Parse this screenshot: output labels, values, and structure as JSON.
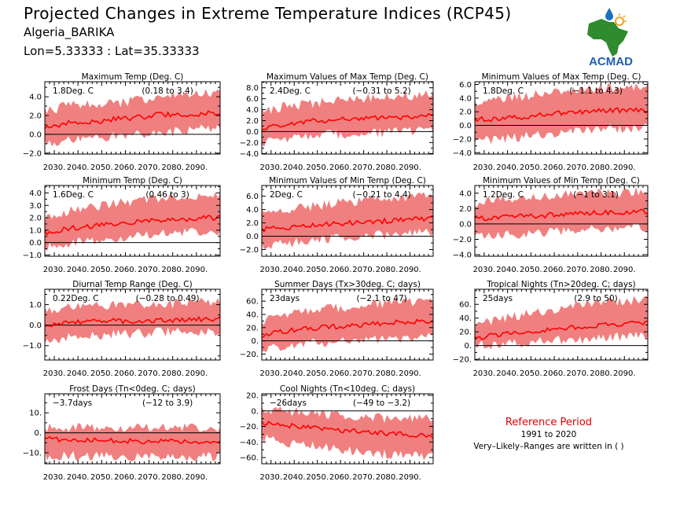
{
  "header": {
    "title": "Projected Changes in Extreme Temperature Indices (RCP45)",
    "station": "Algeria_BARIKA",
    "coords": "Lon=5.33333 : Lat=35.33333"
  },
  "logo": {
    "text": "ACMAD",
    "icon": "africa-map-logo",
    "colors": {
      "map": "#2e8b2e",
      "text": "#2060b0",
      "drop": "#1e70c0",
      "sun": "#f0a020"
    }
  },
  "reference": {
    "title": "Reference Period",
    "years": "1991 to 2020",
    "note": "Very–Likely–Ranges are written in ( )"
  },
  "style": {
    "band_color": "#f08080",
    "line_color": "#ff0000",
    "zero_line_color": "#000000"
  },
  "chart_data": [
    {
      "type": "area",
      "title": "Maximum Temp (Deg. C)",
      "annotation": "1.8Deg. C",
      "range_text": "(0.18 to 3.4)",
      "xlim": [
        2026,
        2100
      ],
      "ylim": [
        -2.1,
        5.6
      ],
      "yticks": [
        -2.0,
        0.0,
        2.0,
        4.0
      ],
      "ytick_labels": [
        "−2.0",
        "0.0",
        "2.0",
        "4.0"
      ],
      "xtick_labels": [
        "2030.",
        "2040.",
        "2050.",
        "2060.",
        "2070.",
        "2080.",
        "2090."
      ],
      "series": [
        {
          "name": "median",
          "x": [
            2026,
            2035,
            2045,
            2055,
            2065,
            2075,
            2085,
            2095,
            2100
          ],
          "values": [
            0.6,
            1.2,
            1.3,
            1.6,
            1.8,
            2.1,
            2.0,
            2.3,
            2.3
          ]
        }
      ],
      "band": {
        "lower": [
          -1.0,
          -0.6,
          -0.5,
          -0.2,
          -0.1,
          0.2,
          0.3,
          0.6,
          0.6
        ],
        "upper": [
          2.4,
          3.0,
          3.2,
          3.3,
          3.6,
          4.0,
          4.2,
          4.3,
          4.3
        ]
      }
    },
    {
      "type": "area",
      "title": "Maximum Values of Max Temp (Deg. C)",
      "annotation": "2.4Deg. C",
      "range_text": "(−0.31 to 5.2)",
      "xlim": [
        2026,
        2100
      ],
      "ylim": [
        -4.1,
        9.1
      ],
      "yticks": [
        -4.0,
        -2.0,
        0.0,
        2.0,
        4.0,
        6.0,
        8.0
      ],
      "ytick_labels": [
        "−4.0",
        "−2.0",
        "0.0",
        "2.0",
        "4.0",
        "6.0",
        "8.0"
      ],
      "xtick_labels": [
        "2030.",
        "2040.",
        "2050.",
        "2060.",
        "2070.",
        "2080.",
        "2090."
      ],
      "series": [
        {
          "name": "median",
          "x": [
            2026,
            2035,
            2045,
            2055,
            2065,
            2075,
            2085,
            2095,
            2100
          ],
          "values": [
            0.6,
            1.3,
            1.8,
            2.1,
            2.3,
            2.5,
            2.6,
            2.8,
            2.9
          ]
        }
      ],
      "band": {
        "lower": [
          -2.0,
          -1.5,
          -1.0,
          -0.6,
          -0.4,
          -0.2,
          0.0,
          0.3,
          0.3
        ],
        "upper": [
          3.5,
          4.5,
          5.0,
          5.6,
          6.0,
          6.3,
          6.5,
          6.8,
          6.8
        ]
      }
    },
    {
      "type": "area",
      "title": "Minimum Values of Max Temp (Deg. C)",
      "annotation": "1.8Deg. C",
      "range_text": "(−1.1 to 4.3)",
      "xlim": [
        2026,
        2100
      ],
      "ylim": [
        -4.2,
        6.4
      ],
      "yticks": [
        -4.0,
        -2.0,
        0.0,
        2.0,
        4.0,
        6.0
      ],
      "ytick_labels": [
        "−4.0",
        "−2.0",
        "0.0",
        "2.0",
        "4.0",
        "6.0"
      ],
      "xtick_labels": [
        "2030.",
        "2040.",
        "2050.",
        "2060.",
        "2070.",
        "2080.",
        "2090."
      ],
      "series": [
        {
          "name": "median",
          "x": [
            2026,
            2035,
            2045,
            2055,
            2065,
            2075,
            2085,
            2095,
            2100
          ],
          "values": [
            0.8,
            1.0,
            1.2,
            1.5,
            1.9,
            2.1,
            2.2,
            2.2,
            2.1
          ]
        }
      ],
      "band": {
        "lower": [
          -2.4,
          -2.0,
          -1.7,
          -1.3,
          -1.0,
          -0.8,
          -0.5,
          -0.4,
          -0.4
        ],
        "upper": [
          3.2,
          3.8,
          4.2,
          4.6,
          5.0,
          5.3,
          5.5,
          5.6,
          5.6
        ]
      }
    },
    {
      "type": "area",
      "title": "Minimum Temp (Deg. C)",
      "annotation": "1.6Deg. C",
      "range_text": "(0.46 to 3)",
      "xlim": [
        2026,
        2100
      ],
      "ylim": [
        -1.1,
        4.6
      ],
      "yticks": [
        -1.0,
        0.0,
        1.0,
        2.0,
        3.0,
        4.0
      ],
      "ytick_labels": [
        "−1.0",
        "0.0",
        "1.0",
        "2.0",
        "3.0",
        "4.0"
      ],
      "xtick_labels": [
        "2030.",
        "2040.",
        "2050.",
        "2060.",
        "2070.",
        "2080.",
        "2090."
      ],
      "series": [
        {
          "name": "median",
          "x": [
            2026,
            2035,
            2045,
            2055,
            2065,
            2075,
            2085,
            2095,
            2100
          ],
          "values": [
            0.8,
            1.1,
            1.3,
            1.5,
            1.7,
            1.8,
            1.9,
            2.0,
            2.0
          ]
        }
      ],
      "band": {
        "lower": [
          -0.4,
          -0.1,
          0.1,
          0.3,
          0.5,
          0.7,
          0.8,
          0.9,
          0.9
        ],
        "upper": [
          2.0,
          2.5,
          2.8,
          3.1,
          3.4,
          3.6,
          3.7,
          3.8,
          3.8
        ]
      }
    },
    {
      "type": "area",
      "title": "Minimum Values of Min Temp (Deg. C)",
      "annotation": "2Deg. C",
      "range_text": "(−0.21 to 4.4)",
      "xlim": [
        2026,
        2100
      ],
      "ylim": [
        -3.0,
        7.6
      ],
      "yticks": [
        -2.0,
        0.0,
        2.0,
        4.0,
        6.0
      ],
      "ytick_labels": [
        "−2.0",
        "0.0",
        "2.0",
        "4.0",
        "6.0"
      ],
      "xtick_labels": [
        "2030.",
        "2040.",
        "2050.",
        "2060.",
        "2070.",
        "2080.",
        "2090."
      ],
      "series": [
        {
          "name": "median",
          "x": [
            2026,
            2035,
            2045,
            2055,
            2065,
            2075,
            2085,
            2095,
            2100
          ],
          "values": [
            1.0,
            1.3,
            1.5,
            1.8,
            2.0,
            2.2,
            2.4,
            2.6,
            2.7
          ]
        }
      ],
      "band": {
        "lower": [
          -1.5,
          -1.1,
          -0.8,
          -0.4,
          -0.1,
          0.1,
          0.3,
          0.5,
          0.5
        ],
        "upper": [
          3.4,
          4.0,
          4.4,
          4.8,
          5.2,
          5.5,
          5.8,
          6.0,
          6.0
        ]
      }
    },
    {
      "type": "area",
      "title": "Minimum Values of Min Temp (Deg. C)",
      "annotation": "1.2Deg. C",
      "range_text": "(−1 to 3.1)",
      "xlim": [
        2026,
        2100
      ],
      "ylim": [
        -4.2,
        5.0
      ],
      "yticks": [
        -4.0,
        -2.0,
        0.0,
        2.0,
        4.0
      ],
      "ytick_labels": [
        "−4.0",
        "−2.0",
        "0.0",
        "2.0",
        "4.0"
      ],
      "xtick_labels": [
        "2030.",
        "2040.",
        "2050.",
        "2060.",
        "2070.",
        "2080.",
        "2090."
      ],
      "series": [
        {
          "name": "median",
          "x": [
            2026,
            2035,
            2045,
            2055,
            2065,
            2075,
            2085,
            2095,
            2100
          ],
          "values": [
            0.7,
            0.8,
            1.0,
            1.1,
            1.3,
            1.4,
            1.5,
            1.6,
            1.6
          ]
        }
      ],
      "band": {
        "lower": [
          -1.8,
          -1.5,
          -1.3,
          -1.1,
          -0.9,
          -0.7,
          -0.6,
          -0.5,
          -0.5
        ],
        "upper": [
          2.8,
          3.1,
          3.4,
          3.6,
          3.8,
          4.0,
          4.1,
          4.2,
          4.2
        ]
      }
    },
    {
      "type": "area",
      "title": "Diurnal Temp Range (Deg. C)",
      "annotation": "0.22Deg. C",
      "range_text": "(−0.28 to 0.49)",
      "xlim": [
        2026,
        2100
      ],
      "ylim": [
        -1.7,
        1.75
      ],
      "yticks": [
        -1.0,
        0.0,
        1.0
      ],
      "ytick_labels": [
        "−1.0",
        "0.0",
        "1.0"
      ],
      "xtick_labels": [
        "2030.",
        "2040.",
        "2050.",
        "2060.",
        "2070.",
        "2080.",
        "2090."
      ],
      "series": [
        {
          "name": "median",
          "x": [
            2026,
            2035,
            2045,
            2055,
            2065,
            2075,
            2085,
            2095,
            2100
          ],
          "values": [
            0.0,
            0.15,
            0.15,
            0.2,
            0.2,
            0.25,
            0.25,
            0.3,
            0.3
          ]
        }
      ],
      "band": {
        "lower": [
          -0.9,
          -0.6,
          -0.5,
          -0.45,
          -0.4,
          -0.35,
          -0.3,
          -0.3,
          -0.3
        ],
        "upper": [
          0.7,
          0.9,
          0.9,
          1.0,
          1.0,
          1.0,
          1.1,
          1.1,
          1.1
        ]
      }
    },
    {
      "type": "area",
      "title": "Summer Days (Tx>30deg. C; days)",
      "annotation": "23days",
      "range_text": "(−2.1 to 47)",
      "xlim": [
        2026,
        2100
      ],
      "ylim": [
        -29,
        78
      ],
      "yticks": [
        -20,
        0,
        20,
        40,
        60
      ],
      "ytick_labels": [
        "−20.",
        "0.",
        "20.",
        "40.",
        "60."
      ],
      "xtick_labels": [
        "2030.",
        "2040.",
        "2050.",
        "2060.",
        "2070.",
        "2080.",
        "2090."
      ],
      "series": [
        {
          "name": "median",
          "x": [
            2026,
            2035,
            2045,
            2055,
            2065,
            2075,
            2085,
            2095,
            2100
          ],
          "values": [
            8,
            14,
            18,
            21,
            23,
            26,
            28,
            30,
            30
          ]
        }
      ],
      "band": {
        "lower": [
          -12,
          -8,
          -4,
          -2,
          0,
          2,
          4,
          6,
          6
        ],
        "upper": [
          30,
          38,
          44,
          48,
          52,
          56,
          58,
          60,
          60
        ]
      }
    },
    {
      "type": "area",
      "title": "Tropical Nights (Tn>20deg. C; days)",
      "annotation": "25days",
      "range_text": "(2.9 to 50)",
      "xlim": [
        2026,
        2100
      ],
      "ylim": [
        -21,
        82
      ],
      "yticks": [
        -20,
        0,
        20,
        40,
        60
      ],
      "ytick_labels": [
        "−20.",
        "0.",
        "20.",
        "40.",
        "60."
      ],
      "xtick_labels": [
        "2030.",
        "2040.",
        "2050.",
        "2060.",
        "2070.",
        "2080.",
        "2090."
      ],
      "series": [
        {
          "name": "median",
          "x": [
            2026,
            2035,
            2045,
            2055,
            2065,
            2075,
            2085,
            2095,
            2100
          ],
          "values": [
            10,
            16,
            19,
            22,
            25,
            28,
            31,
            33,
            33
          ]
        }
      ],
      "band": {
        "lower": [
          0,
          2,
          4,
          6,
          8,
          10,
          12,
          14,
          14
        ],
        "upper": [
          28,
          38,
          44,
          50,
          55,
          60,
          64,
          66,
          66
        ]
      }
    },
    {
      "type": "area",
      "title": "Frost Days (Tn<0deg. C; days)",
      "annotation": "−3.7days",
      "range_text": "(−12 to 3.9)",
      "xlim": [
        2026,
        2100
      ],
      "ylim": [
        -15.5,
        19.5
      ],
      "yticks": [
        -10,
        0,
        10
      ],
      "ytick_labels": [
        "−10.",
        "0.",
        "10."
      ],
      "xtick_labels": [
        "2030.",
        "2040.",
        "2050.",
        "2060.",
        "2070.",
        "2080.",
        "2090."
      ],
      "series": [
        {
          "name": "median",
          "x": [
            2026,
            2035,
            2045,
            2055,
            2065,
            2075,
            2085,
            2095,
            2100
          ],
          "values": [
            -3.0,
            -3.5,
            -3.8,
            -4.0,
            -4.2,
            -4.3,
            -4.4,
            -4.5,
            -4.5
          ]
        }
      ],
      "band": {
        "lower": [
          -11.5,
          -11.5,
          -11.8,
          -12,
          -12,
          -12,
          -12,
          -12,
          -12
        ],
        "upper": [
          2.5,
          2.5,
          2.5,
          2.5,
          2.5,
          2.5,
          2.5,
          2.5,
          2.5
        ]
      }
    },
    {
      "type": "area",
      "title": "Cool Nights (Tn<10deg. C; days)",
      "annotation": "−26days",
      "range_text": "(−49 to −3.2)",
      "xlim": [
        2026,
        2100
      ],
      "ylim": [
        -68,
        22
      ],
      "yticks": [
        -60,
        -40,
        -20,
        0,
        20
      ],
      "ytick_labels": [
        "−60.",
        "−40.",
        "−20.",
        "0.",
        "20."
      ],
      "xtick_labels": [
        "2030.",
        "2040.",
        "2050.",
        "2060.",
        "2070.",
        "2080.",
        "2090."
      ],
      "series": [
        {
          "name": "median",
          "x": [
            2026,
            2035,
            2045,
            2055,
            2065,
            2075,
            2085,
            2095,
            2100
          ],
          "values": [
            -15,
            -18,
            -21,
            -24,
            -26,
            -28,
            -30,
            -32,
            -32
          ]
        }
      ],
      "band": {
        "lower": [
          -35,
          -40,
          -44,
          -48,
          -52,
          -55,
          -57,
          -58,
          -58
        ],
        "upper": [
          2,
          0,
          -2,
          -5,
          -7,
          -9,
          -10,
          -10,
          -10
        ]
      }
    }
  ]
}
